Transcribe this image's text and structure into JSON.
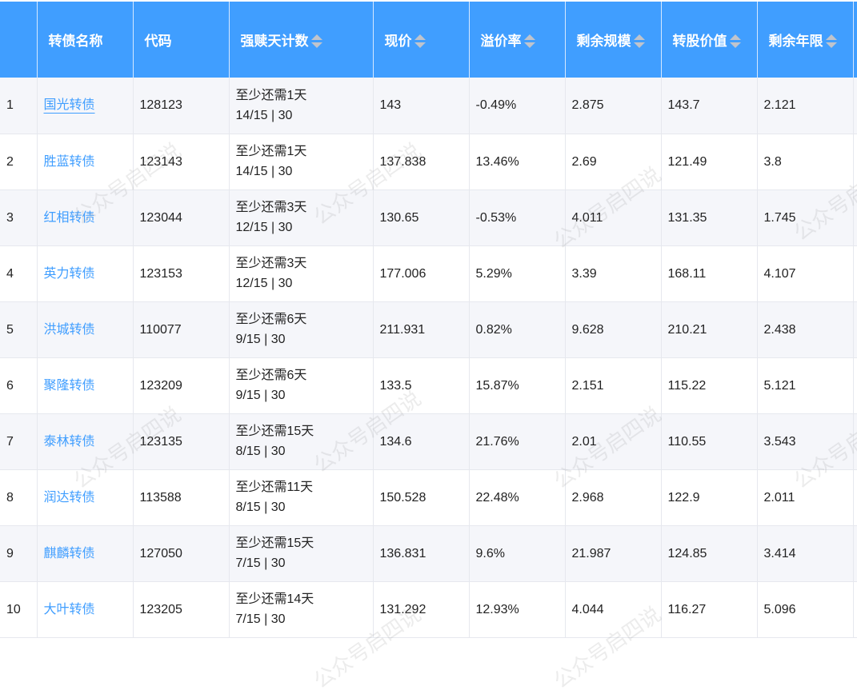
{
  "headers": [
    {
      "label": ""
    },
    {
      "label": "转债名称"
    },
    {
      "label": "代码"
    },
    {
      "label": "强赎天计数",
      "sortable": true
    },
    {
      "label": "现价",
      "sortable": true
    },
    {
      "label": "溢价率",
      "sortable": true
    },
    {
      "label": "剩余规模",
      "sortable": true
    },
    {
      "label": "转股价值",
      "sortable": true
    },
    {
      "label": "剩余年限",
      "sortable": true
    },
    {
      "label": ""
    }
  ],
  "rows": [
    {
      "idx": "1",
      "name": "国光转债",
      "code": "128123",
      "days": "至少还需1天",
      "count": "14/15 | 30",
      "price": "143",
      "premium": "-0.49%",
      "scale": "2.875",
      "value": "143.7",
      "years": "2.121"
    },
    {
      "idx": "2",
      "name": "胜蓝转债",
      "code": "123143",
      "days": "至少还需1天",
      "count": "14/15 | 30",
      "price": "137.838",
      "premium": "13.46%",
      "scale": "2.69",
      "value": "121.49",
      "years": "3.8"
    },
    {
      "idx": "3",
      "name": "红相转债",
      "code": "123044",
      "days": "至少还需3天",
      "count": "12/15 | 30",
      "price": "130.65",
      "premium": "-0.53%",
      "scale": "4.011",
      "value": "131.35",
      "years": "1.745"
    },
    {
      "idx": "4",
      "name": "英力转债",
      "code": "123153",
      "days": "至少还需3天",
      "count": "12/15 | 30",
      "price": "177.006",
      "premium": "5.29%",
      "scale": "3.39",
      "value": "168.11",
      "years": "4.107"
    },
    {
      "idx": "5",
      "name": "洪城转债",
      "code": "110077",
      "days": "至少还需6天",
      "count": "9/15 | 30",
      "price": "211.931",
      "premium": "0.82%",
      "scale": "9.628",
      "value": "210.21",
      "years": "2.438"
    },
    {
      "idx": "6",
      "name": "聚隆转债",
      "code": "123209",
      "days": "至少还需6天",
      "count": "9/15 | 30",
      "price": "133.5",
      "premium": "15.87%",
      "scale": "2.151",
      "value": "115.22",
      "years": "5.121"
    },
    {
      "idx": "7",
      "name": "泰林转债",
      "code": "123135",
      "days": "至少还需15天",
      "count": "8/15 | 30",
      "price": "134.6",
      "premium": "21.76%",
      "scale": "2.01",
      "value": "110.55",
      "years": "3.543"
    },
    {
      "idx": "8",
      "name": "润达转债",
      "code": "113588",
      "days": "至少还需11天",
      "count": "8/15 | 30",
      "price": "150.528",
      "premium": "22.48%",
      "scale": "2.968",
      "value": "122.9",
      "years": "2.011"
    },
    {
      "idx": "9",
      "name": "麒麟转债",
      "code": "127050",
      "days": "至少还需15天",
      "count": "7/15 | 30",
      "price": "136.831",
      "premium": "9.6%",
      "scale": "21.987",
      "value": "124.85",
      "years": "3.414"
    },
    {
      "idx": "10",
      "name": "大叶转债",
      "code": "123205",
      "days": "至少还需14天",
      "count": "7/15 | 30",
      "price": "131.292",
      "premium": "12.93%",
      "scale": "4.044",
      "value": "116.27",
      "years": "5.096"
    }
  ],
  "watermark": "公众号启四说",
  "colors": {
    "header": "#409eff",
    "link": "#409eff",
    "stripe": "#f5f6fa"
  }
}
